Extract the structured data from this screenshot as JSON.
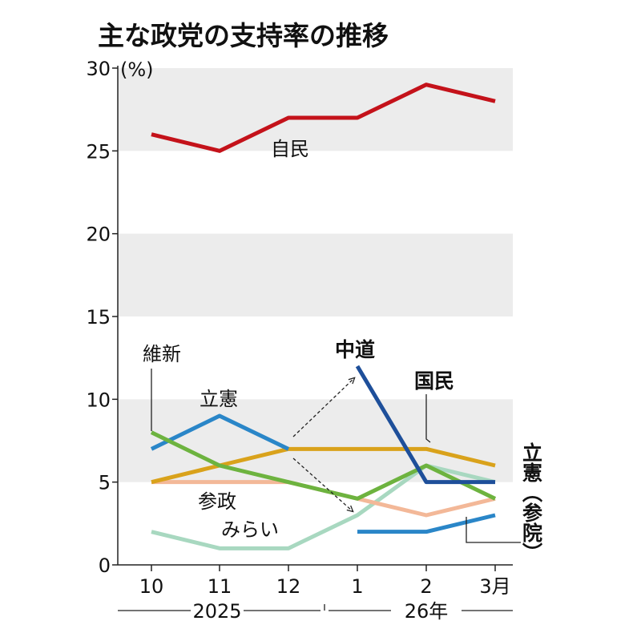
{
  "chart_data": {
    "type": "line",
    "title": "主な政党の支持率の推移",
    "ylabel": "(%)",
    "ylim": [
      0,
      30
    ],
    "yticks": [
      0,
      5,
      10,
      15,
      20,
      25,
      30
    ],
    "categories": [
      "10",
      "11",
      "12",
      "1",
      "2",
      "3月"
    ],
    "year_labels": [
      "2025",
      "26年"
    ],
    "series": [
      {
        "name": "自民",
        "color": "#c4121a",
        "values": [
          26,
          25,
          27,
          27,
          29,
          28
        ]
      },
      {
        "name": "立憲",
        "color": "#2a86c8",
        "values": [
          7,
          9,
          7,
          null,
          null,
          null
        ]
      },
      {
        "name": "国民",
        "color": "#d9a21b",
        "values": [
          5,
          6,
          7,
          7,
          7,
          6
        ]
      },
      {
        "name": "参政",
        "color": "#f3b898",
        "values": [
          5,
          5,
          5,
          4,
          3,
          4
        ]
      },
      {
        "name": "維新",
        "color": "#6db33f",
        "values": [
          8,
          6,
          5,
          4,
          6,
          4
        ]
      },
      {
        "name": "みらい",
        "color": "#a8d8c0",
        "values": [
          2,
          1,
          1,
          3,
          6,
          5
        ]
      },
      {
        "name": "中道",
        "color": "#1e4f9a",
        "values": [
          null,
          null,
          null,
          12,
          5,
          5
        ]
      },
      {
        "name": "立憲（参院）",
        "color": "#2a86c8",
        "values": [
          null,
          null,
          null,
          2,
          2,
          3
        ]
      }
    ]
  }
}
